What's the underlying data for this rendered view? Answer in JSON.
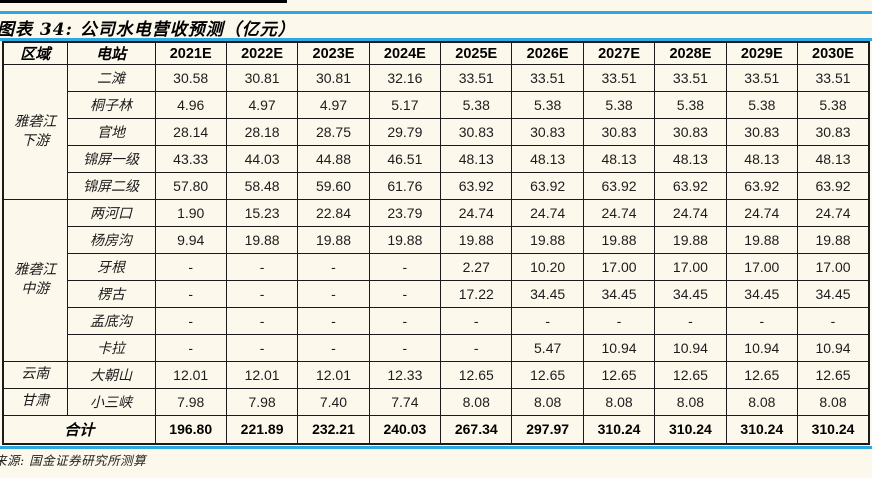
{
  "page": {
    "background": "#FDF8EC",
    "accent_blue": "#2DA9E1",
    "border_color": "#1B1B1B"
  },
  "title": "图表 34: 公司水电营收预测（亿元）",
  "source": "来源: 国金证券研究所测算",
  "table": {
    "headers": {
      "region": "区域",
      "station": "电站",
      "years": [
        "2021E",
        "2022E",
        "2023E",
        "2024E",
        "2025E",
        "2026E",
        "2027E",
        "2028E",
        "2029E",
        "2030E"
      ]
    },
    "groups": [
      {
        "region": "雅砻江下游",
        "region_display": "雅砻江\n下游",
        "rows": [
          {
            "station": "二滩",
            "values": [
              "30.58",
              "30.81",
              "30.81",
              "32.16",
              "33.51",
              "33.51",
              "33.51",
              "33.51",
              "33.51",
              "33.51"
            ]
          },
          {
            "station": "桐子林",
            "values": [
              "4.96",
              "4.97",
              "4.97",
              "5.17",
              "5.38",
              "5.38",
              "5.38",
              "5.38",
              "5.38",
              "5.38"
            ]
          },
          {
            "station": "官地",
            "values": [
              "28.14",
              "28.18",
              "28.75",
              "29.79",
              "30.83",
              "30.83",
              "30.83",
              "30.83",
              "30.83",
              "30.83"
            ]
          },
          {
            "station": "锦屏一级",
            "values": [
              "43.33",
              "44.03",
              "44.88",
              "46.51",
              "48.13",
              "48.13",
              "48.13",
              "48.13",
              "48.13",
              "48.13"
            ]
          },
          {
            "station": "锦屏二级",
            "values": [
              "57.80",
              "58.48",
              "59.60",
              "61.76",
              "63.92",
              "63.92",
              "63.92",
              "63.92",
              "63.92",
              "63.92"
            ]
          }
        ]
      },
      {
        "region": "雅砻江中游",
        "region_display": "雅砻江\n中游",
        "rows": [
          {
            "station": "两河口",
            "values": [
              "1.90",
              "15.23",
              "22.84",
              "23.79",
              "24.74",
              "24.74",
              "24.74",
              "24.74",
              "24.74",
              "24.74"
            ]
          },
          {
            "station": "杨房沟",
            "values": [
              "9.94",
              "19.88",
              "19.88",
              "19.88",
              "19.88",
              "19.88",
              "19.88",
              "19.88",
              "19.88",
              "19.88"
            ]
          },
          {
            "station": "牙根",
            "values": [
              "-",
              "-",
              "-",
              "-",
              "2.27",
              "10.20",
              "17.00",
              "17.00",
              "17.00",
              "17.00"
            ]
          },
          {
            "station": "楞古",
            "values": [
              "-",
              "-",
              "-",
              "-",
              "17.22",
              "34.45",
              "34.45",
              "34.45",
              "34.45",
              "34.45"
            ]
          },
          {
            "station": "孟底沟",
            "values": [
              "-",
              "-",
              "-",
              "-",
              "-",
              "-",
              "-",
              "-",
              "-",
              "-"
            ]
          },
          {
            "station": "卡拉",
            "values": [
              "-",
              "-",
              "-",
              "-",
              "-",
              "5.47",
              "10.94",
              "10.94",
              "10.94",
              "10.94"
            ]
          }
        ]
      },
      {
        "region": "云南",
        "region_display": "云南",
        "rows": [
          {
            "station": "大朝山",
            "values": [
              "12.01",
              "12.01",
              "12.01",
              "12.33",
              "12.65",
              "12.65",
              "12.65",
              "12.65",
              "12.65",
              "12.65"
            ]
          }
        ]
      },
      {
        "region": "甘肃",
        "region_display": "甘肃",
        "rows": [
          {
            "station": "小三峡",
            "values": [
              "7.98",
              "7.98",
              "7.40",
              "7.74",
              "8.08",
              "8.08",
              "8.08",
              "8.08",
              "8.08",
              "8.08"
            ]
          }
        ]
      }
    ],
    "total": {
      "label": "合计",
      "values": [
        "196.80",
        "221.89",
        "232.21",
        "240.03",
        "267.34",
        "297.97",
        "310.24",
        "310.24",
        "310.24",
        "310.24"
      ]
    }
  }
}
